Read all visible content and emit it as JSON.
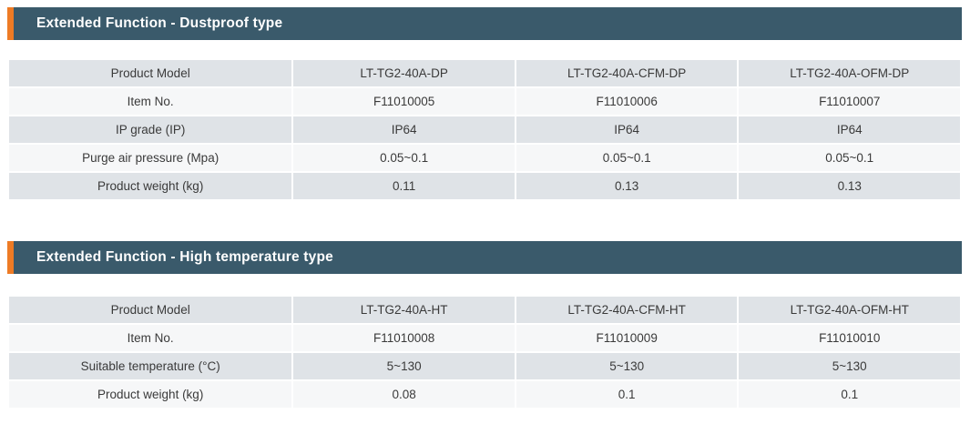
{
  "colors": {
    "accent_orange": "#ee7b25",
    "header_teal": "#3a5a6b",
    "row_gray": "#dfe3e7",
    "row_light": "#f6f7f8",
    "cell_text": "#3a3a3a",
    "header_text": "#ffffff"
  },
  "sections": [
    {
      "title": "Extended Function - Dustproof type",
      "table": {
        "rows": [
          {
            "label": "Product Model",
            "values": [
              "LT-TG2-40A-DP",
              "LT-TG2-40A-CFM-DP",
              "LT-TG2-40A-OFM-DP"
            ]
          },
          {
            "label": "Item No.",
            "values": [
              "F11010005",
              "F11010006",
              "F11010007"
            ]
          },
          {
            "label": "IP grade (IP)",
            "values": [
              "IP64",
              "IP64",
              "IP64"
            ]
          },
          {
            "label": "Purge air pressure (Mpa)",
            "values": [
              "0.05~0.1",
              "0.05~0.1",
              "0.05~0.1"
            ]
          },
          {
            "label": "Product weight (kg)",
            "values": [
              "0.11",
              "0.13",
              "0.13"
            ]
          }
        ]
      }
    },
    {
      "title": "Extended Function - High temperature type",
      "table": {
        "rows": [
          {
            "label": "Product Model",
            "values": [
              "LT-TG2-40A-HT",
              "LT-TG2-40A-CFM-HT",
              "LT-TG2-40A-OFM-HT"
            ]
          },
          {
            "label": "Item No.",
            "values": [
              "F11010008",
              "F11010009",
              "F11010010"
            ]
          },
          {
            "label": "Suitable temperature (°C)",
            "values": [
              "5~130",
              "5~130",
              "5~130"
            ]
          },
          {
            "label": "Product weight (kg)",
            "values": [
              "0.08",
              "0.1",
              "0.1"
            ]
          }
        ]
      }
    }
  ]
}
